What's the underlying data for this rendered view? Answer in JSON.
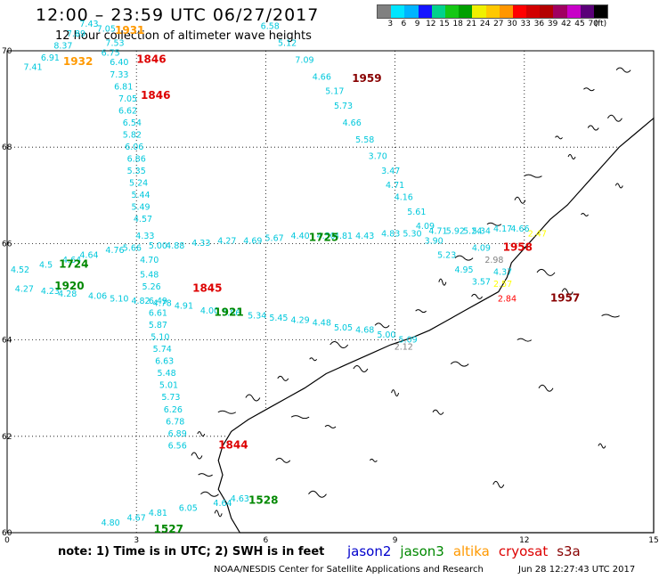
{
  "title": "12:00 – 23:59 UTC 06/27/2017",
  "subtitle": "12 hour collection of altimeter wave heights",
  "legend": {
    "colors": [
      "#808080",
      "#00e5ff",
      "#00b4ff",
      "#1414ff",
      "#00d28c",
      "#14c814",
      "#00a000",
      "#f0f000",
      "#ffc800",
      "#ff9600",
      "#ff0000",
      "#d20000",
      "#b40000",
      "#a00060",
      "#c800c8",
      "#5a0078",
      "#000000"
    ],
    "ticks": [
      "3",
      "6",
      "9",
      "12",
      "15",
      "18",
      "21",
      "24",
      "27",
      "30",
      "33",
      "36",
      "39",
      "42",
      "45",
      "70",
      "(ft)"
    ]
  },
  "axes": {
    "x_ticks": [
      "0",
      "3",
      "6",
      "9",
      "12",
      "15"
    ],
    "y_ticks": [
      "60",
      "62",
      "64",
      "66",
      "68",
      "70"
    ]
  },
  "colors": {
    "jason2": "#0000cc",
    "jason3": "#008800",
    "altika": "#ff9900",
    "cryosat": "#dd0000",
    "s3a": "#880000",
    "wave": "#00c8dc",
    "wave_high": "#ffff00",
    "wave_low": "#808080"
  },
  "tracks": [
    {
      "satellite": "jason2",
      "label_color": "#00c8dc",
      "points": [
        {
          "lon": 0.3,
          "lat": 65.4,
          "v": "4.52"
        },
        {
          "lon": 0.9,
          "lat": 65.5,
          "v": "4.5"
        },
        {
          "lon": 1.5,
          "lat": 65.6,
          "v": "4.64"
        },
        {
          "lon": 1.9,
          "lat": 65.7,
          "v": "4.64"
        },
        {
          "lon": 2.5,
          "lat": 65.8,
          "v": "4.76"
        },
        {
          "lon": 2.9,
          "lat": 65.85,
          "v": "5.66"
        },
        {
          "lon": 3.5,
          "lat": 65.9,
          "v": "5.00"
        },
        {
          "lon": 3.9,
          "lat": 65.9,
          "v": "4.88"
        },
        {
          "lon": 4.5,
          "lat": 65.95,
          "v": "4.33"
        },
        {
          "lon": 5.1,
          "lat": 66.0,
          "v": "4.27"
        },
        {
          "lon": 5.7,
          "lat": 66.0,
          "v": "4.69"
        },
        {
          "lon": 6.2,
          "lat": 66.05,
          "v": "5.67"
        },
        {
          "lon": 6.8,
          "lat": 66.1,
          "v": "4.40"
        },
        {
          "lon": 7.4,
          "lat": 66.1,
          "v": "4.50"
        },
        {
          "lon": 7.8,
          "lat": 66.1,
          "v": "4.81"
        },
        {
          "lon": 8.3,
          "lat": 66.1,
          "v": "4.43"
        },
        {
          "lon": 8.9,
          "lat": 66.15,
          "v": "4.83"
        },
        {
          "lon": 9.4,
          "lat": 66.15,
          "v": "5.30"
        },
        {
          "lon": 10.0,
          "lat": 66.2,
          "v": "4.71"
        },
        {
          "lon": 10.4,
          "lat": 66.2,
          "v": "5.92"
        },
        {
          "lon": 10.8,
          "lat": 66.2,
          "v": "5.24"
        },
        {
          "lon": 11.0,
          "lat": 66.2,
          "v": "5.34"
        },
        {
          "lon": 11.5,
          "lat": 66.25,
          "v": "4.17"
        },
        {
          "lon": 11.9,
          "lat": 66.25,
          "v": "4.66"
        }
      ]
    },
    {
      "satellite": "jason2b",
      "label_color": "#00c8dc",
      "points": [
        {
          "lon": 0.4,
          "lat": 65.0,
          "v": "4.27"
        },
        {
          "lon": 1.0,
          "lat": 64.95,
          "v": "4.23"
        },
        {
          "lon": 1.4,
          "lat": 64.9,
          "v": "4.28"
        },
        {
          "lon": 2.1,
          "lat": 64.85,
          "v": "4.06"
        },
        {
          "lon": 2.6,
          "lat": 64.8,
          "v": "5.10"
        },
        {
          "lon": 3.1,
          "lat": 64.75,
          "v": "4.82"
        },
        {
          "lon": 3.6,
          "lat": 64.7,
          "v": "4.78"
        },
        {
          "lon": 4.1,
          "lat": 64.65,
          "v": "4.91"
        },
        {
          "lon": 4.7,
          "lat": 64.55,
          "v": "4.00"
        },
        {
          "lon": 5.2,
          "lat": 64.5,
          "v": "5.86"
        },
        {
          "lon": 5.8,
          "lat": 64.45,
          "v": "5.34"
        },
        {
          "lon": 6.3,
          "lat": 64.4,
          "v": "5.45"
        },
        {
          "lon": 6.8,
          "lat": 64.35,
          "v": "4.29"
        },
        {
          "lon": 7.3,
          "lat": 64.3,
          "v": "4.48"
        },
        {
          "lon": 7.8,
          "lat": 64.2,
          "v": "5.05"
        },
        {
          "lon": 8.3,
          "lat": 64.15,
          "v": "4.68"
        },
        {
          "lon": 8.8,
          "lat": 64.05,
          "v": "5.00"
        },
        {
          "lon": 9.3,
          "lat": 63.95,
          "v": "5.09"
        }
      ]
    },
    {
      "satellite": "altika",
      "label_color": "#00c8dc",
      "points": [
        {
          "lon": 0.6,
          "lat": 69.6,
          "v": "7.41"
        },
        {
          "lon": 1.0,
          "lat": 69.8,
          "v": "6.91"
        },
        {
          "lon": 1.3,
          "lat": 70.05,
          "v": "8.37"
        },
        {
          "lon": 1.6,
          "lat": 70.3,
          "v": "7.89"
        },
        {
          "lon": 1.9,
          "lat": 70.5,
          "v": "7.43"
        },
        {
          "lon": 2.3,
          "lat": 70.4,
          "v": "7.05"
        },
        {
          "lon": 2.5,
          "lat": 70.1,
          "v": "7.53"
        },
        {
          "lon": 2.4,
          "lat": 69.9,
          "v": "6.75"
        },
        {
          "lon": 2.6,
          "lat": 69.7,
          "v": "6.40"
        },
        {
          "lon": 2.6,
          "lat": 69.45,
          "v": "7.33"
        },
        {
          "lon": 2.7,
          "lat": 69.2,
          "v": "6.81"
        },
        {
          "lon": 2.8,
          "lat": 68.95,
          "v": "7.05"
        },
        {
          "lon": 2.8,
          "lat": 68.7,
          "v": "6.62"
        },
        {
          "lon": 2.9,
          "lat": 68.45,
          "v": "6.54"
        },
        {
          "lon": 2.9,
          "lat": 68.2,
          "v": "5.82"
        },
        {
          "lon": 2.95,
          "lat": 67.95,
          "v": "6.06"
        },
        {
          "lon": 3.0,
          "lat": 67.7,
          "v": "6.86"
        },
        {
          "lon": 3.0,
          "lat": 67.45,
          "v": "5.35"
        },
        {
          "lon": 3.05,
          "lat": 67.2,
          "v": "5.24"
        },
        {
          "lon": 3.1,
          "lat": 66.95,
          "v": "5.44"
        },
        {
          "lon": 3.1,
          "lat": 66.7,
          "v": "5.49"
        },
        {
          "lon": 3.15,
          "lat": 66.45,
          "v": "4.57"
        },
        {
          "lon": 3.2,
          "lat": 66.1,
          "v": "4.33"
        }
      ]
    },
    {
      "satellite": "cryosat",
      "label_color": "#00c8dc",
      "points": [
        {
          "lon": 3.3,
          "lat": 65.6,
          "v": "4.70"
        },
        {
          "lon": 3.3,
          "lat": 65.3,
          "v": "5.48"
        },
        {
          "lon": 3.35,
          "lat": 65.05,
          "v": "5.26"
        },
        {
          "lon": 3.5,
          "lat": 64.75,
          "v": "6.49"
        },
        {
          "lon": 3.5,
          "lat": 64.5,
          "v": "6.61"
        },
        {
          "lon": 3.5,
          "lat": 64.25,
          "v": "5.87"
        },
        {
          "lon": 3.55,
          "lat": 64.0,
          "v": "5.10"
        },
        {
          "lon": 3.6,
          "lat": 63.75,
          "v": "5.74"
        },
        {
          "lon": 3.65,
          "lat": 63.5,
          "v": "6.63"
        },
        {
          "lon": 3.7,
          "lat": 63.25,
          "v": "5.48"
        },
        {
          "lon": 3.75,
          "lat": 63.0,
          "v": "5.01"
        },
        {
          "lon": 3.8,
          "lat": 62.75,
          "v": "5.73"
        },
        {
          "lon": 3.85,
          "lat": 62.5,
          "v": "6.26"
        },
        {
          "lon": 3.9,
          "lat": 62.25,
          "v": "6.78"
        },
        {
          "lon": 3.95,
          "lat": 62.0,
          "v": "6.89"
        },
        {
          "lon": 3.95,
          "lat": 61.75,
          "v": "6.56"
        }
      ]
    },
    {
      "satellite": "s3a",
      "label_color": "#00c8dc",
      "points": [
        {
          "lon": 6.1,
          "lat": 70.45,
          "v": "6.58"
        },
        {
          "lon": 6.5,
          "lat": 70.1,
          "v": "5.12"
        },
        {
          "lon": 6.9,
          "lat": 69.75,
          "v": "7.09"
        },
        {
          "lon": 7.3,
          "lat": 69.4,
          "v": "4.66"
        },
        {
          "lon": 7.6,
          "lat": 69.1,
          "v": "5.17"
        },
        {
          "lon": 7.8,
          "lat": 68.8,
          "v": "5.73"
        },
        {
          "lon": 8.0,
          "lat": 68.45,
          "v": "4.66"
        },
        {
          "lon": 8.3,
          "lat": 68.1,
          "v": "5.58"
        },
        {
          "lon": 8.6,
          "lat": 67.75,
          "v": "3.70"
        },
        {
          "lon": 8.9,
          "lat": 67.45,
          "v": "3.47"
        },
        {
          "lon": 9.0,
          "lat": 67.15,
          "v": "4.71"
        },
        {
          "lon": 9.2,
          "lat": 66.9,
          "v": "4.16"
        },
        {
          "lon": 9.5,
          "lat": 66.6,
          "v": "5.61"
        },
        {
          "lon": 9.7,
          "lat": 66.3,
          "v": "4.09"
        },
        {
          "lon": 9.9,
          "lat": 66.0,
          "v": "3.90"
        },
        {
          "lon": 10.2,
          "lat": 65.7,
          "v": "5.23"
        },
        {
          "lon": 10.6,
          "lat": 65.4,
          "v": "4.95"
        },
        {
          "lon": 11.0,
          "lat": 65.15,
          "v": "3.57"
        }
      ]
    },
    {
      "satellite": "jason3",
      "label_color": "#00c8dc",
      "points": [
        {
          "lon": 2.4,
          "lat": 60.15,
          "v": "4.80"
        },
        {
          "lon": 3.0,
          "lat": 60.25,
          "v": "4.67"
        },
        {
          "lon": 3.5,
          "lat": 60.35,
          "v": "4.81"
        },
        {
          "lon": 4.2,
          "lat": 60.45,
          "v": "6.05"
        },
        {
          "lon": 5.0,
          "lat": 60.55,
          "v": "4.64"
        },
        {
          "lon": 5.4,
          "lat": 60.65,
          "v": "4.63"
        }
      ]
    }
  ],
  "extra_values": [
    {
      "lon": 11.0,
      "lat": 65.85,
      "v": "4.09",
      "color": "#00c8dc"
    },
    {
      "lon": 11.3,
      "lat": 65.6,
      "v": "2.98",
      "color": "#808080"
    },
    {
      "lon": 11.5,
      "lat": 65.35,
      "v": "4.37",
      "color": "#00c8dc"
    },
    {
      "lon": 11.5,
      "lat": 65.1,
      "v": "2.57",
      "color": "#ffff00"
    },
    {
      "lon": 11.6,
      "lat": 64.8,
      "v": "2.84",
      "color": "#ff0000"
    },
    {
      "lon": 12.3,
      "lat": 66.15,
      "v": "2.47",
      "color": "#ffff00"
    },
    {
      "lon": 9.2,
      "lat": 63.8,
      "v": "2.12",
      "color": "#808080"
    }
  ],
  "time_labels": [
    {
      "lon": 2.5,
      "lat": 70.35,
      "text": "1931",
      "color": "#ff9900"
    },
    {
      "lon": 1.3,
      "lat": 69.7,
      "text": "1932",
      "color": "#ff9900"
    },
    {
      "lon": 3.0,
      "lat": 69.75,
      "text": "1846",
      "color": "#dd0000"
    },
    {
      "lon": 3.1,
      "lat": 69.0,
      "text": "1846",
      "color": "#dd0000"
    },
    {
      "lon": 8.0,
      "lat": 69.35,
      "text": "1959",
      "color": "#880000"
    },
    {
      "lon": 1.2,
      "lat": 65.5,
      "text": "1724",
      "color": "#008800"
    },
    {
      "lon": 1.1,
      "lat": 65.05,
      "text": "1920",
      "color": "#008800"
    },
    {
      "lon": 7.0,
      "lat": 66.05,
      "text": "1725",
      "color": "#008800"
    },
    {
      "lon": 4.3,
      "lat": 65.0,
      "text": "1845",
      "color": "#dd0000"
    },
    {
      "lon": 4.8,
      "lat": 64.5,
      "text": "1921",
      "color": "#008800"
    },
    {
      "lon": 11.5,
      "lat": 65.85,
      "text": "1958",
      "color": "#dd0000"
    },
    {
      "lon": 12.6,
      "lat": 64.8,
      "text": "1957",
      "color": "#880000"
    },
    {
      "lon": 4.9,
      "lat": 61.75,
      "text": "1844",
      "color": "#dd0000"
    },
    {
      "lon": 5.6,
      "lat": 60.6,
      "text": "1528",
      "color": "#008800"
    },
    {
      "lon": 3.4,
      "lat": 60.0,
      "text": "1527",
      "color": "#008800"
    }
  ],
  "note": "note:  1) Time is in UTC;  2) SWH is in feet",
  "satellites_legend": [
    {
      "name": "jason2",
      "color": "#0000cc"
    },
    {
      "name": "jason3",
      "color": "#008800"
    },
    {
      "name": "altika",
      "color": "#ff9900"
    },
    {
      "name": "cryosat",
      "color": "#dd0000"
    },
    {
      "name": "s3a",
      "color": "#880000"
    }
  ],
  "footer_left": "NOAA/NESDIS Center for Satellite Applications and Research",
  "footer_right": "Jun 28 12:27:43 UTC 2017"
}
